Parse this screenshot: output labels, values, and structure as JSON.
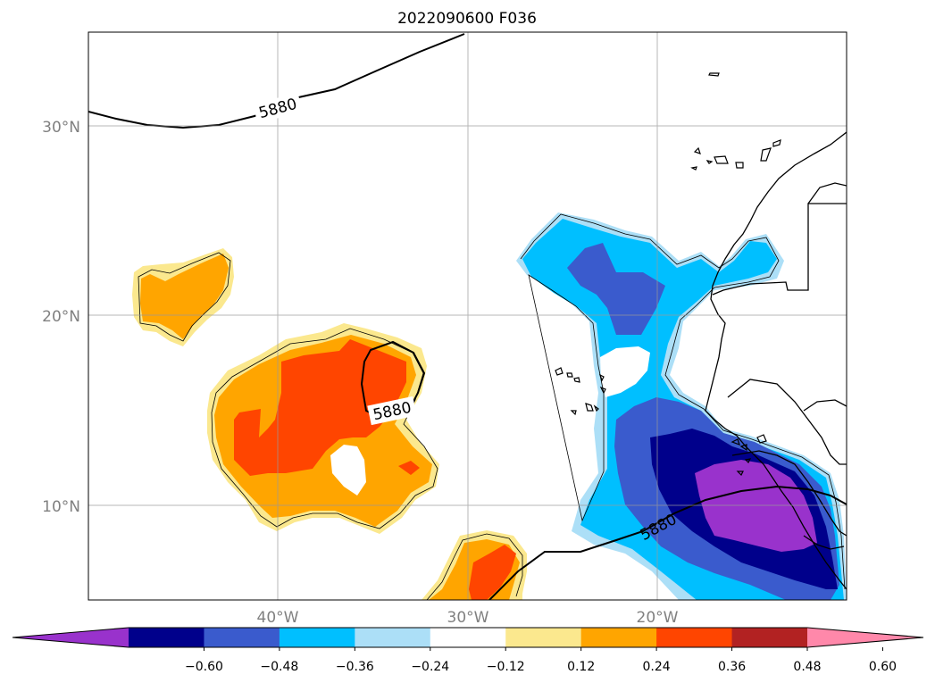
{
  "title": "2022090600 F036",
  "lat_labels": [
    "30°N",
    "20°N",
    "10°N"
  ],
  "lon_labels": [
    "40°W",
    "30°W",
    "20°W"
  ],
  "contour_labels": [
    "5880",
    "5880",
    "5880"
  ],
  "colorbar": {
    "ticks": [
      "−0.60",
      "−0.48",
      "−0.36",
      "−0.24",
      "−0.12",
      "0.12",
      "0.24",
      "0.36",
      "0.48",
      "0.60"
    ],
    "colors": [
      "#9932cc",
      "#00008b",
      "#3a5bcd",
      "#00bfff",
      "#acdff7",
      "#ffffff",
      "#fbe88e",
      "#ffa500",
      "#ff4500",
      "#b22222",
      "#ff88aa"
    ]
  }
}
